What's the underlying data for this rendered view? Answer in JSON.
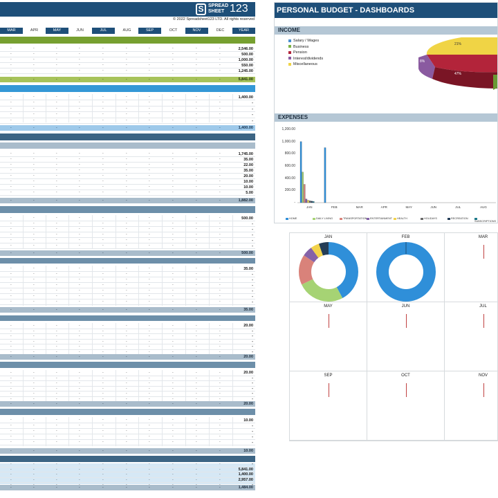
{
  "sheet": {
    "copyright": "© 2022 Spreadsheet123 LTD. All rights reserved",
    "logo": {
      "top": "SPREAD",
      "bottom": "SHEET",
      "number": "123",
      "mark": "S"
    },
    "months": [
      "MAR",
      "APR",
      "MAY",
      "JUN",
      "JUL",
      "AUG",
      "SEP",
      "OCT",
      "NOV",
      "DEC",
      "YEAR"
    ],
    "dash": "-",
    "income_values": [
      "2,546.00",
      "500.00",
      "1,000.00",
      "550.00",
      "1,245.00"
    ],
    "income_total": "5,841.00",
    "section2_values": [
      "1,400.00",
      "-",
      "-",
      "-",
      "-"
    ],
    "section2_total": "1,400.00",
    "section3_values": [
      "1,745.00",
      "35.00",
      "22.00",
      "35.00",
      "20.00",
      "10.00",
      "10.00",
      "5.00"
    ],
    "section3_total": "1,882.00",
    "section4_values": [
      "500.00",
      "-",
      "-",
      "-",
      "-",
      "-"
    ],
    "section4_total": "500.00",
    "section5_values": [
      "35.00",
      "-",
      "-",
      "-",
      "-",
      "-",
      "-"
    ],
    "section5_total": "35.00",
    "section6_values": [
      "20.00",
      "-",
      "-",
      "-",
      "-",
      "-"
    ],
    "section6_total": "20.00",
    "section7_values": [
      "20.00",
      "-",
      "-",
      "-",
      "-",
      "-"
    ],
    "section7_total": "20.00",
    "section8_values": [
      "10.00",
      "-",
      "-",
      "-",
      "-"
    ],
    "section8_total": "10.00",
    "summary_values": [
      "-",
      "5,841.00",
      "1,400.00",
      "2,957.00",
      "-"
    ],
    "summary_total": "1,484.00"
  },
  "dashboard": {
    "title": "PERSONAL BUDGET - DASHBOARDS",
    "income_label": "INCOME",
    "expenses_label": "EXPENSES",
    "income_legend": [
      {
        "label": "Salary / Wages",
        "color": "#4a8fd0"
      },
      {
        "label": "Business",
        "color": "#7bb243"
      },
      {
        "label": "Pension",
        "color": "#b3243a"
      },
      {
        "label": "Interest/dividends",
        "color": "#8a5aa0"
      },
      {
        "label": "Miscellaneous",
        "color": "#f0d445"
      }
    ],
    "pie_labels": {
      "misc": "21%",
      "pension": "47%",
      "interest": "8%"
    },
    "chart_data": {
      "type": "bar",
      "categories": [
        "JAN",
        "FEB",
        "MAR",
        "APR",
        "MAY",
        "JUN",
        "JUL",
        "AUG"
      ],
      "ylim": [
        0,
        1200
      ],
      "yticks": [
        "1,200.00",
        "1,000.00",
        "800.00",
        "600.00",
        "400.00",
        "200.00",
        "-"
      ],
      "series": [
        {
          "name": "HOME",
          "color": "#2f8fd9",
          "values": [
            1000,
            900,
            0,
            0,
            0,
            0,
            0,
            0
          ]
        },
        {
          "name": "DAILY LIVING",
          "color": "#a6d374",
          "values": [
            500,
            0,
            0,
            0,
            0,
            0,
            0,
            0
          ]
        },
        {
          "name": "TRANSPORTATION",
          "color": "#d9827a",
          "values": [
            300,
            0,
            0,
            0,
            0,
            0,
            0,
            0
          ]
        },
        {
          "name": "ENTERTAINMENT",
          "color": "#8462a8",
          "values": [
            60,
            0,
            0,
            0,
            0,
            0,
            0,
            0
          ]
        },
        {
          "name": "HEALTH",
          "color": "#f2d24a",
          "values": [
            40,
            0,
            0,
            0,
            0,
            0,
            0,
            0
          ]
        },
        {
          "name": "HOLIDAYS",
          "color": "#6a6a6a",
          "values": [
            30,
            0,
            0,
            0,
            0,
            0,
            0,
            0
          ]
        },
        {
          "name": "RECREATION",
          "color": "#243d57",
          "values": [
            25,
            0,
            0,
            0,
            0,
            0,
            0,
            0
          ]
        },
        {
          "name": "SUBSCRIPTIONS",
          "color": "#1e7a8a",
          "values": [
            20,
            0,
            0,
            0,
            0,
            0,
            0,
            0
          ]
        }
      ]
    },
    "donut_months": [
      "JAN",
      "FEB",
      "MAR",
      "MAY",
      "JUN",
      "JUL",
      "SEP",
      "OCT",
      "NOV"
    ]
  }
}
